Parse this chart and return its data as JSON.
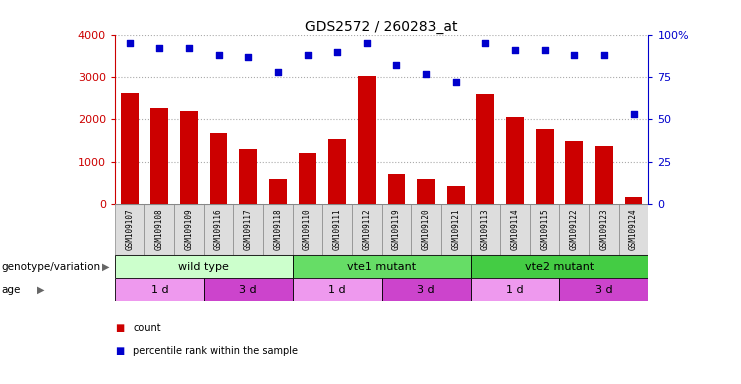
{
  "title": "GDS2572 / 260283_at",
  "samples": [
    "GSM109107",
    "GSM109108",
    "GSM109109",
    "GSM109116",
    "GSM109117",
    "GSM109118",
    "GSM109110",
    "GSM109111",
    "GSM109112",
    "GSM109119",
    "GSM109120",
    "GSM109121",
    "GSM109113",
    "GSM109114",
    "GSM109115",
    "GSM109122",
    "GSM109123",
    "GSM109124"
  ],
  "counts": [
    2620,
    2260,
    2200,
    1680,
    1310,
    590,
    1200,
    1540,
    3020,
    700,
    590,
    430,
    2590,
    2060,
    1780,
    1490,
    1360,
    160
  ],
  "percentile_ranks": [
    95,
    92,
    92,
    88,
    87,
    78,
    88,
    90,
    95,
    82,
    77,
    72,
    95,
    91,
    91,
    88,
    88,
    53
  ],
  "bar_color": "#cc0000",
  "dot_color": "#0000cc",
  "ylim_left": [
    0,
    4000
  ],
  "ylim_right": [
    0,
    100
  ],
  "yticks_left": [
    0,
    1000,
    2000,
    3000,
    4000
  ],
  "yticks_right": [
    0,
    25,
    50,
    75,
    100
  ],
  "yticklabels_right": [
    "0",
    "25",
    "50",
    "75",
    "100%"
  ],
  "genotype_groups": [
    {
      "label": "wild type",
      "start": 0,
      "end": 6,
      "color": "#ccffcc"
    },
    {
      "label": "vte1 mutant",
      "start": 6,
      "end": 12,
      "color": "#66dd66"
    },
    {
      "label": "vte2 mutant",
      "start": 12,
      "end": 18,
      "color": "#44cc44"
    }
  ],
  "age_groups": [
    {
      "label": "1 d",
      "start": 0,
      "end": 3,
      "color": "#ee99ee"
    },
    {
      "label": "3 d",
      "start": 3,
      "end": 6,
      "color": "#cc44cc"
    },
    {
      "label": "1 d",
      "start": 6,
      "end": 9,
      "color": "#ee99ee"
    },
    {
      "label": "3 d",
      "start": 9,
      "end": 12,
      "color": "#cc44cc"
    },
    {
      "label": "1 d",
      "start": 12,
      "end": 15,
      "color": "#ee99ee"
    },
    {
      "label": "3 d",
      "start": 15,
      "end": 18,
      "color": "#cc44cc"
    }
  ],
  "legend_count_color": "#cc0000",
  "legend_pct_color": "#0000cc",
  "background_color": "#ffffff",
  "grid_color": "#aaaaaa",
  "bar_width": 0.6,
  "label_row_color": "#dddddd",
  "label_border_color": "#888888"
}
